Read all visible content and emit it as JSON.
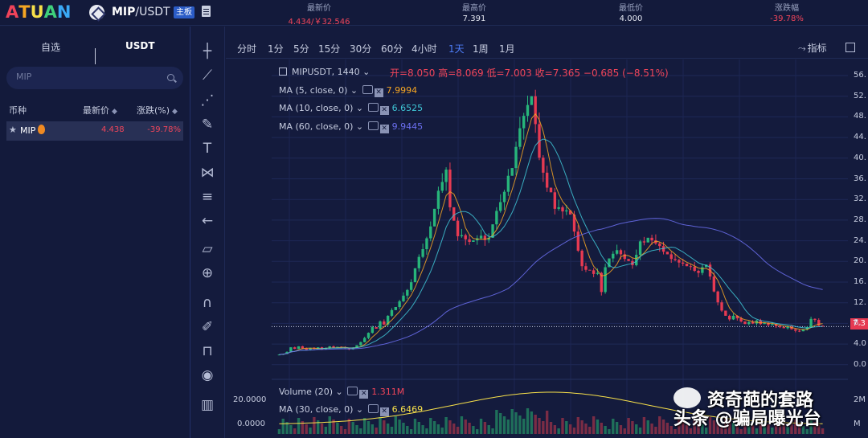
{
  "header": {
    "logo_text": "ATUAN",
    "logo_colors": [
      "#f0435a",
      "#f6a623",
      "#f7e04a",
      "#3fd07b",
      "#3aa8f5"
    ],
    "pair": {
      "base": "MIP",
      "quote": "/USDT",
      "badge": "主板"
    },
    "stats": [
      {
        "label": "最新价",
        "value": "4.434/￥32.546",
        "color": "red"
      },
      {
        "label": "最高价",
        "value": "7.391",
        "color": "normal"
      },
      {
        "label": "最低价",
        "value": "4.000",
        "color": "normal"
      },
      {
        "label": "涨跌幅",
        "value": "-39.78%",
        "color": "red"
      }
    ]
  },
  "sidebar": {
    "tabs": [
      {
        "label": "自选"
      },
      {
        "label": "USDT"
      }
    ],
    "search": {
      "placeholder": "MIP"
    },
    "columns": [
      "币种",
      "最新价",
      "涨跌(%)"
    ],
    "rows": [
      {
        "symbol": "MIP",
        "price": "4.438",
        "change": "-39.78%"
      }
    ]
  },
  "periods": [
    "分时",
    "1分",
    "5分",
    "15分",
    "30分",
    "60分",
    "4小时",
    "1天",
    "1周",
    "1月"
  ],
  "active_period": "1天",
  "indicator_label": "指标",
  "chart": {
    "symbol_line": "MIPUSDT, 1440",
    "ohlc": "开=8.050  高=8.069  低=7.003  收=7.365  −0.685 (−8.51%)",
    "ma_lines": [
      {
        "label": "MA (5, close, 0)",
        "value": "7.9994",
        "color": "#f6a623"
      },
      {
        "label": "MA (10, close, 0)",
        "value": "6.6525",
        "color": "#3fc6d6"
      },
      {
        "label": "MA (60, close, 0)",
        "value": "9.9445",
        "color": "#6b6ff0"
      }
    ],
    "volume_line": {
      "label": "Volume (20)",
      "value": "1.311M"
    },
    "volume_ma": {
      "label": "MA (30, close, 0)",
      "value": "6.6469"
    },
    "y_ticks": [
      "56.",
      "52.",
      "48.",
      "44.",
      "40.",
      "36.",
      "32.",
      "28.",
      "24.",
      "20.",
      "16.",
      "12.",
      "8.",
      "4.0",
      "0.0"
    ],
    "price_tag": "7.3",
    "vol_ticks": [
      "20.0000",
      "0.0000"
    ],
    "vol_right_ticks": [
      "2M",
      "M"
    ]
  },
  "watermark": {
    "line1": "资奇葩的套路",
    "line2": "头条 @骗局曝光台"
  },
  "chart_data": {
    "type": "line",
    "title": "MIPUSDT, 1440",
    "ylim": [
      0,
      56
    ],
    "close_series": [
      2.0,
      2.1,
      2.5,
      3.4,
      3.1,
      3.6,
      3.2,
      2.9,
      3.3,
      3.1,
      3.4,
      3.0,
      3.2,
      3.6,
      3.3,
      3.5,
      3.4,
      3.2,
      3.0,
      3.3,
      3.8,
      4.4,
      5.2,
      6.2,
      7.3,
      7.0,
      8.4,
      7.8,
      9.5,
      10.6,
      11.2,
      12.3,
      13.4,
      14.5,
      16.0,
      18.7,
      20.9,
      22.4,
      24.5,
      26.8,
      30.2,
      33.7,
      35.4,
      37.8,
      30.5,
      27.9,
      24.9,
      25.1,
      24.3,
      23.8,
      24.1,
      24.5,
      25.0,
      24.2,
      24.6,
      27.2,
      29.8,
      31.5,
      33.5,
      36.6,
      38.1,
      42.2,
      45.8,
      48.2,
      50.3,
      52.0,
      46.6,
      40.1,
      37.2,
      34.3,
      33.4,
      30.2,
      30.5,
      29.7,
      29.9,
      29.1,
      25.8,
      22.1,
      19.1,
      18.4,
      18.3,
      17.6,
      17.8,
      14.1,
      18.9,
      20.6,
      21.5,
      22.2,
      21.4,
      20.5,
      20.1,
      19.3,
      21.3,
      23.9,
      23.7,
      24.6,
      24.1,
      23.5,
      23.0,
      21.9,
      21.4,
      20.5,
      20.3,
      19.8,
      19.6,
      19.1,
      19.0,
      18.2,
      17.8,
      18.9,
      19.4,
      17.1,
      14.2,
      12.1,
      10.5,
      9.5,
      8.8,
      9.5,
      9.0,
      8.4,
      7.9,
      8.3,
      8.0,
      8.6,
      7.9,
      8.1,
      7.7,
      7.9,
      7.5,
      7.3,
      7.1,
      7.4,
      6.9,
      6.6,
      6.5,
      6.9,
      7.3,
      8.9,
      8.7,
      7.6,
      7.4
    ],
    "ma5_note": "MA lines overlayed"
  }
}
